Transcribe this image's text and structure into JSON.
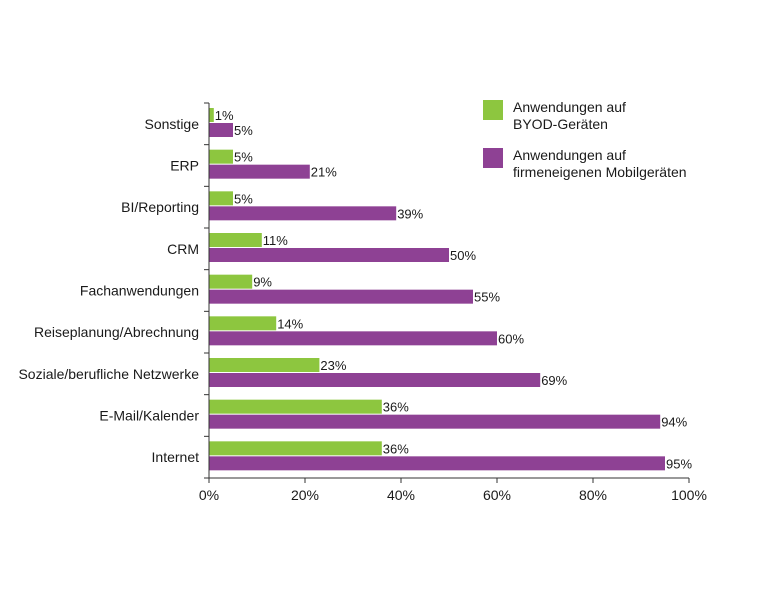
{
  "chart_data": {
    "type": "bar",
    "orientation": "horizontal",
    "categories": [
      "Sonstige",
      "ERP",
      "BI/Reporting",
      "CRM",
      "Fachanwendungen",
      "Reiseplanung/Abrechnung",
      "Soziale/berufliche Netzwerke",
      "E-Mail/Kalender",
      "Internet"
    ],
    "series": [
      {
        "name": "Anwendungen auf\nBYOD-Geräten",
        "color": "#8dc63f",
        "values": [
          1,
          5,
          5,
          11,
          9,
          14,
          23,
          36,
          36
        ]
      },
      {
        "name": "Anwendungen auf\nfirmeneigenen Mobilgeräten",
        "color": "#8e4194",
        "values": [
          5,
          21,
          39,
          50,
          55,
          60,
          69,
          94,
          95
        ]
      }
    ],
    "value_suffix": "%",
    "xlim": [
      0,
      100
    ],
    "xticks": [
      "0%",
      "20%",
      "40%",
      "60%",
      "80%",
      "100%"
    ],
    "xtick_values": [
      0,
      20,
      40,
      60,
      80,
      100
    ],
    "legend_position": "top-right",
    "grid": false
  }
}
